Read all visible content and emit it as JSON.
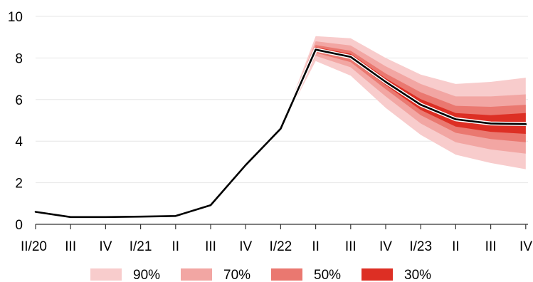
{
  "chart_data": {
    "type": "line",
    "x_tick_labels": [
      "II/20",
      "III",
      "IV",
      "I/21",
      "II",
      "III",
      "IV",
      "I/22",
      "II",
      "III",
      "IV",
      "I/23",
      "II",
      "III",
      "IV"
    ],
    "y_ticks": [
      0,
      2,
      4,
      6,
      8,
      10
    ],
    "ylim": [
      0,
      10
    ],
    "grid": true,
    "series": [
      {
        "values": [
          0.6,
          0.35,
          0.35,
          0.37,
          0.4,
          0.92,
          2.85,
          4.6,
          8.4,
          8.05,
          6.85,
          5.75,
          5.05,
          4.85,
          4.82
        ]
      }
    ],
    "fan_start_index": 7,
    "fan_bands": [
      {
        "label": "90%",
        "color": "#f8cccc",
        "lower": [
          4.6,
          7.85,
          7.15,
          5.6,
          4.3,
          3.35,
          2.95,
          2.65
        ],
        "upper": [
          4.6,
          9.05,
          8.95,
          8.0,
          7.2,
          6.75,
          6.85,
          7.05
        ]
      },
      {
        "label": "70%",
        "color": "#f2a6a3",
        "lower": [
          4.6,
          8.1,
          7.55,
          6.15,
          4.85,
          3.95,
          3.6,
          3.4
        ],
        "upper": [
          4.6,
          8.8,
          8.6,
          7.6,
          6.75,
          6.15,
          6.15,
          6.25
        ]
      },
      {
        "label": "50%",
        "color": "#ea7870",
        "lower": [
          4.6,
          8.25,
          7.8,
          6.5,
          5.25,
          4.4,
          4.1,
          3.95
        ],
        "upper": [
          4.6,
          8.62,
          8.35,
          7.25,
          6.35,
          5.7,
          5.65,
          5.75
        ]
      },
      {
        "label": "30%",
        "color": "#dd2f24",
        "lower": [
          4.6,
          8.35,
          7.95,
          6.7,
          5.5,
          4.7,
          4.45,
          4.35
        ],
        "upper": [
          4.6,
          8.52,
          8.2,
          7.02,
          6.02,
          5.35,
          5.25,
          5.35
        ]
      }
    ],
    "legend_position": "bottom"
  }
}
